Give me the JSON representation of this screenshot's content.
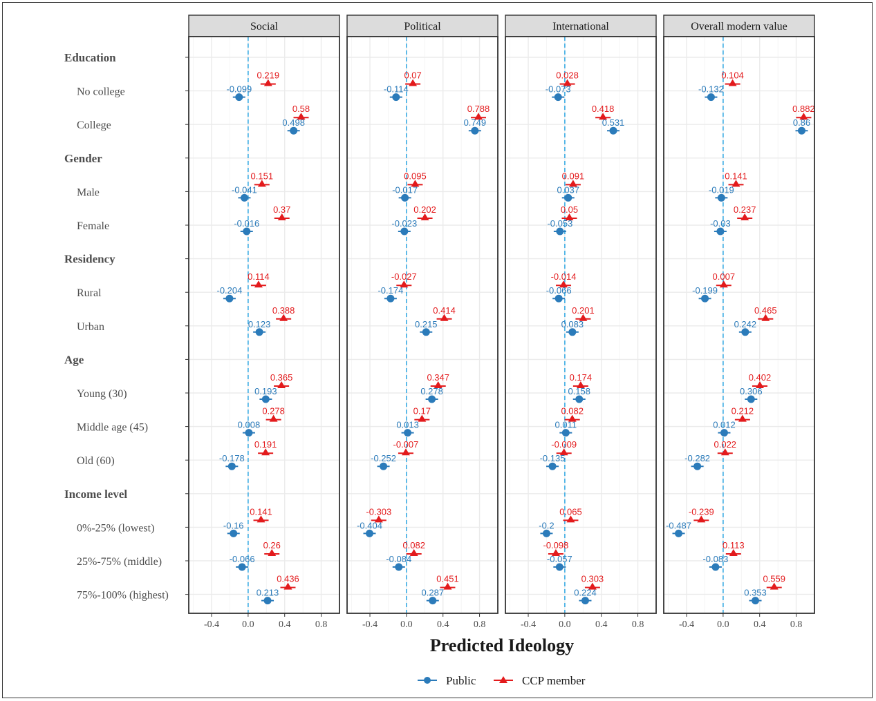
{
  "chart_data": {
    "type": "scatter",
    "xlabel": "Predicted Ideology",
    "xticks": [
      -0.4,
      0.0,
      0.4,
      0.8
    ],
    "xlim": [
      -0.65,
      1.0
    ],
    "panels": [
      "Social",
      "Political",
      "International",
      "Overall modern value"
    ],
    "rows": [
      {
        "type": "group",
        "label": "Education"
      },
      {
        "type": "item",
        "label": "No college",
        "public": [
          -0.099,
          -0.114,
          -0.073,
          -0.132
        ],
        "ccp": [
          0.219,
          0.07,
          0.028,
          0.104
        ]
      },
      {
        "type": "item",
        "label": "College",
        "public": [
          0.498,
          0.749,
          0.531,
          0.86
        ],
        "ccp": [
          0.58,
          0.788,
          0.418,
          0.882
        ]
      },
      {
        "type": "group",
        "label": "Gender"
      },
      {
        "type": "item",
        "label": "Male",
        "public": [
          -0.041,
          -0.017,
          0.037,
          -0.019
        ],
        "ccp": [
          0.151,
          0.095,
          0.091,
          0.141
        ]
      },
      {
        "type": "item",
        "label": "Female",
        "public": [
          -0.016,
          -0.023,
          -0.053,
          -0.03
        ],
        "ccp": [
          0.37,
          0.202,
          0.05,
          0.237
        ]
      },
      {
        "type": "group",
        "label": "Residency"
      },
      {
        "type": "item",
        "label": "Rural",
        "public": [
          -0.204,
          -0.174,
          -0.066,
          -0.199
        ],
        "ccp": [
          0.114,
          -0.027,
          -0.014,
          0.007
        ]
      },
      {
        "type": "item",
        "label": "Urban",
        "public": [
          0.123,
          0.215,
          0.083,
          0.242
        ],
        "ccp": [
          0.388,
          0.414,
          0.201,
          0.465
        ]
      },
      {
        "type": "group",
        "label": "Age"
      },
      {
        "type": "item",
        "label": "Young (30)",
        "public": [
          0.193,
          0.278,
          0.158,
          0.306
        ],
        "ccp": [
          0.365,
          0.347,
          0.174,
          0.402
        ]
      },
      {
        "type": "item",
        "label": "Middle age (45)",
        "public": [
          0.008,
          0.013,
          0.011,
          0.012
        ],
        "ccp": [
          0.278,
          0.17,
          0.082,
          0.212
        ]
      },
      {
        "type": "item",
        "label": "Old (60)",
        "public": [
          -0.178,
          -0.252,
          -0.135,
          -0.282
        ],
        "ccp": [
          0.191,
          -0.007,
          -0.009,
          0.022
        ]
      },
      {
        "type": "group",
        "label": "Income level"
      },
      {
        "type": "item",
        "label": "0%-25% (lowest)",
        "public": [
          -0.16,
          -0.404,
          -0.2,
          -0.487
        ],
        "ccp": [
          0.141,
          -0.303,
          0.065,
          -0.239
        ]
      },
      {
        "type": "item",
        "label": "25%-75% (middle)",
        "public": [
          -0.066,
          -0.084,
          -0.057,
          -0.083
        ],
        "ccp": [
          0.26,
          0.082,
          -0.098,
          0.113
        ]
      },
      {
        "type": "item",
        "label": "75%-100% (highest)",
        "public": [
          0.213,
          0.287,
          0.224,
          0.353
        ],
        "ccp": [
          0.436,
          0.451,
          0.303,
          0.559
        ]
      }
    ],
    "series": [
      {
        "name": "Public",
        "key": "public",
        "color": "#2b7bba",
        "marker": "circle"
      },
      {
        "name": "CCP member",
        "key": "ccp",
        "color": "#e31a1c",
        "marker": "triangle"
      }
    ],
    "zero_line_color": "#4db3e6",
    "legend_position": "bottom",
    "grid": true
  }
}
